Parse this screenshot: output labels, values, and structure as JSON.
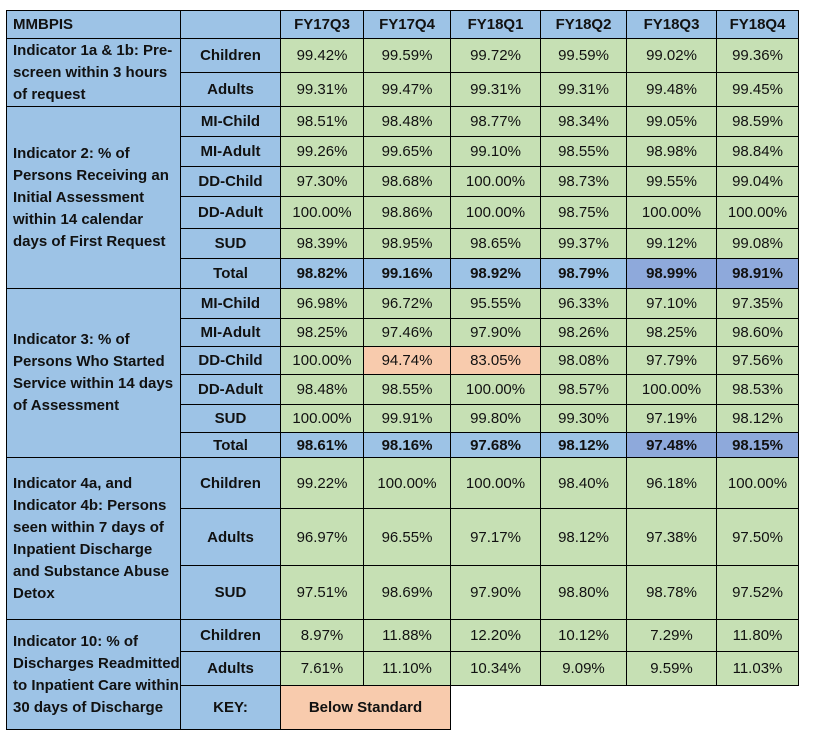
{
  "table": {
    "title": "MMBPIS",
    "columns": [
      "FY17Q3",
      "FY17Q4",
      "FY18Q1",
      "FY18Q2",
      "FY18Q3",
      "FY18Q4"
    ],
    "indicators": [
      {
        "label": "Indicator 1a & 1b: Pre-screen within 3 hours of request",
        "rows": [
          {
            "label": "Children",
            "values": [
              "99.42%",
              "99.59%",
              "99.72%",
              "99.59%",
              "99.02%",
              "99.36%"
            ]
          },
          {
            "label": "Adults",
            "values": [
              "99.31%",
              "99.47%",
              "99.31%",
              "99.31%",
              "99.48%",
              "99.45%"
            ]
          }
        ]
      },
      {
        "label": "Indicator 2: % of Persons Receiving an Initial Assessment within 14 calendar days of First Request",
        "rows": [
          {
            "label": "MI-Child",
            "values": [
              "98.51%",
              "98.48%",
              "98.77%",
              "98.34%",
              "99.05%",
              "98.59%"
            ]
          },
          {
            "label": "MI-Adult",
            "values": [
              "99.26%",
              "99.65%",
              "99.10%",
              "98.55%",
              "98.98%",
              "98.84%"
            ]
          },
          {
            "label": "DD-Child",
            "values": [
              "97.30%",
              "98.68%",
              "100.00%",
              "98.73%",
              "99.55%",
              "99.04%"
            ]
          },
          {
            "label": "DD-Adult",
            "values": [
              "100.00%",
              "98.86%",
              "100.00%",
              "98.75%",
              "100.00%",
              "100.00%"
            ]
          },
          {
            "label": "SUD",
            "values": [
              "98.39%",
              "98.95%",
              "98.65%",
              "99.37%",
              "99.12%",
              "99.08%"
            ]
          },
          {
            "label": "Total",
            "values": [
              "98.82%",
              "99.16%",
              "98.92%",
              "98.79%",
              "98.99%",
              "98.91%"
            ]
          }
        ]
      },
      {
        "label": "Indicator 3: % of Persons Who Started Service within 14 days of Assessment",
        "rows": [
          {
            "label": "MI-Child",
            "values": [
              "96.98%",
              "96.72%",
              "95.55%",
              "96.33%",
              "97.10%",
              "97.35%"
            ]
          },
          {
            "label": "MI-Adult",
            "values": [
              "98.25%",
              "97.46%",
              "97.90%",
              "98.26%",
              "98.25%",
              "98.60%"
            ]
          },
          {
            "label": "DD-Child",
            "values": [
              "100.00%",
              "94.74%",
              "83.05%",
              "98.08%",
              "97.79%",
              "97.56%"
            ]
          },
          {
            "label": "DD-Adult",
            "values": [
              "98.48%",
              "98.55%",
              "100.00%",
              "98.57%",
              "100.00%",
              "98.53%"
            ]
          },
          {
            "label": "SUD",
            "values": [
              "100.00%",
              "99.91%",
              "99.80%",
              "99.30%",
              "97.19%",
              "98.12%"
            ]
          },
          {
            "label": "Total",
            "values": [
              "98.61%",
              "98.16%",
              "97.68%",
              "98.12%",
              "97.48%",
              "98.15%"
            ]
          }
        ]
      },
      {
        "label": "Indicator 4a, and Indicator 4b: Persons seen within 7 days of Inpatient Discharge and Substance Abuse Detox",
        "rows": [
          {
            "label": "Children",
            "values": [
              "99.22%",
              "100.00%",
              "100.00%",
              "98.40%",
              "96.18%",
              "100.00%"
            ]
          },
          {
            "label": "Adults",
            "values": [
              "96.97%",
              "96.55%",
              "97.17%",
              "98.12%",
              "97.38%",
              "97.50%"
            ]
          },
          {
            "label": "SUD",
            "values": [
              "97.51%",
              "98.69%",
              "97.90%",
              "98.80%",
              "98.78%",
              "97.52%"
            ]
          }
        ]
      },
      {
        "label": "Indicator 10: % of Discharges Readmitted to Inpatient Care within 30 days of Discharge",
        "rows": [
          {
            "label": "Children",
            "values": [
              "8.97%",
              "11.88%",
              "12.20%",
              "10.12%",
              "7.29%",
              "11.80%"
            ]
          },
          {
            "label": "Adults",
            "values": [
              "7.61%",
              "11.10%",
              "10.34%",
              "9.09%",
              "9.59%",
              "11.03%"
            ]
          }
        ]
      }
    ],
    "key": {
      "label": "KEY:",
      "value": "Below Standard"
    },
    "colors": {
      "header_blue": "#9dc3e6",
      "value_green": "#c6e0b4",
      "below_standard": "#f8cbad",
      "total_dark_blue": "#8ea9db"
    }
  }
}
